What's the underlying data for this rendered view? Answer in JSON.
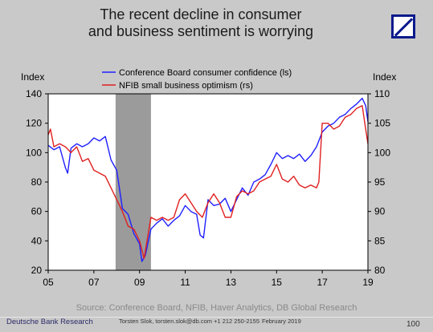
{
  "title_lines": [
    "The recent decline in consumer",
    "and business sentiment is worrying"
  ],
  "footer": {
    "source": "Source: Conference Board, NFIB, Haver Analytics, DB Global Research",
    "org": "Deutsche Bank Research",
    "contact": "Torsten Slok, torsten.slok@db.com  +1 212 250-2155",
    "date": "February 2019",
    "page": "100"
  },
  "colors": {
    "series_1": "#1f1fff",
    "series_2": "#e02020",
    "shade": "#9b9b9b",
    "logo": "#0a1a8c"
  },
  "chart_data": {
    "type": "line",
    "ylabel_left": "Index",
    "ylabel_right": "Index",
    "legend_position": "top-center",
    "x_tick_labels": [
      "05",
      "07",
      "09",
      "11",
      "13",
      "15",
      "17",
      "19"
    ],
    "x_ticks": [
      2005,
      2007,
      2009,
      2011,
      2013,
      2015,
      2017,
      2019
    ],
    "xlim": [
      2005,
      2019
    ],
    "ylim_left": [
      20,
      140
    ],
    "left_ticks": [
      20,
      40,
      60,
      80,
      100,
      120,
      140
    ],
    "ylim_right": [
      80,
      110
    ],
    "right_ticks": [
      80,
      85,
      90,
      95,
      100,
      105,
      110
    ],
    "shaded_region": [
      2007.95,
      2009.5
    ],
    "series": [
      {
        "name": "Conference Board consumer confidence (ls)",
        "axis": "left",
        "x": [
          2005.0,
          2005.25,
          2005.5,
          2005.75,
          2005.85,
          2006.0,
          2006.25,
          2006.5,
          2006.75,
          2007.0,
          2007.25,
          2007.5,
          2007.75,
          2008.0,
          2008.25,
          2008.5,
          2008.75,
          2009.0,
          2009.1,
          2009.25,
          2009.5,
          2009.75,
          2010.0,
          2010.25,
          2010.5,
          2010.75,
          2011.0,
          2011.25,
          2011.5,
          2011.65,
          2011.8,
          2012.0,
          2012.25,
          2012.5,
          2012.75,
          2013.0,
          2013.25,
          2013.5,
          2013.75,
          2014.0,
          2014.25,
          2014.5,
          2014.75,
          2015.0,
          2015.25,
          2015.5,
          2015.75,
          2016.0,
          2016.25,
          2016.5,
          2016.75,
          2017.0,
          2017.25,
          2017.5,
          2017.75,
          2018.0,
          2018.25,
          2018.5,
          2018.75,
          2018.9,
          2019.0
        ],
        "values": [
          105,
          102,
          104,
          90,
          86,
          103,
          106,
          104,
          106,
          110,
          108,
          111,
          95,
          88,
          62,
          58,
          45,
          38,
          26,
          30,
          48,
          52,
          55,
          50,
          54,
          57,
          64,
          60,
          58,
          44,
          42,
          68,
          64,
          65,
          69,
          60,
          68,
          76,
          71,
          80,
          82,
          85,
          92,
          100,
          96,
          98,
          96,
          99,
          94,
          98,
          104,
          114,
          118,
          120,
          124,
          126,
          130,
          133,
          137,
          132,
          121
        ]
      },
      {
        "name": "NFIB small business optimism (rs)",
        "axis": "right",
        "x": [
          2005.0,
          2005.1,
          2005.25,
          2005.5,
          2005.75,
          2006.0,
          2006.25,
          2006.5,
          2006.75,
          2007.0,
          2007.25,
          2007.5,
          2007.75,
          2008.0,
          2008.25,
          2008.5,
          2008.75,
          2009.0,
          2009.2,
          2009.5,
          2009.75,
          2010.0,
          2010.25,
          2010.5,
          2010.75,
          2011.0,
          2011.25,
          2011.5,
          2011.75,
          2012.0,
          2012.25,
          2012.5,
          2012.75,
          2013.0,
          2013.25,
          2013.5,
          2013.75,
          2014.0,
          2014.25,
          2014.5,
          2014.75,
          2015.0,
          2015.25,
          2015.5,
          2015.75,
          2016.0,
          2016.25,
          2016.5,
          2016.75,
          2016.85,
          2017.0,
          2017.25,
          2017.5,
          2017.75,
          2018.0,
          2018.25,
          2018.5,
          2018.75,
          2018.9,
          2019.0
        ],
        "values": [
          103,
          104,
          101,
          101.5,
          101,
          100,
          101,
          98.5,
          99,
          97,
          96.5,
          96,
          94,
          92,
          90,
          87.5,
          87,
          85,
          82,
          89,
          88.5,
          89,
          88.5,
          89,
          92,
          93,
          91.5,
          90,
          89,
          91.5,
          93,
          91.5,
          89,
          89,
          92.5,
          93.5,
          93,
          93.5,
          95,
          95.5,
          96,
          98,
          95.5,
          95,
          96,
          94.5,
          94,
          94.5,
          94,
          95,
          105,
          105,
          104,
          104.5,
          106,
          106.5,
          107.5,
          108,
          104,
          101.5
        ]
      }
    ]
  }
}
